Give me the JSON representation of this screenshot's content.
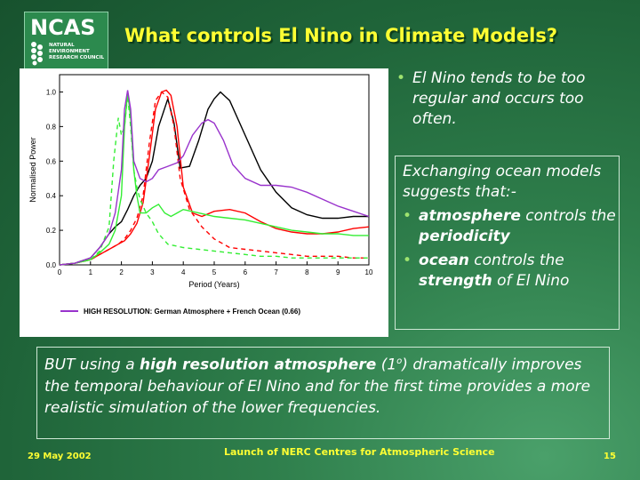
{
  "logo": {
    "name": "NCAS",
    "sub": [
      "NATURAL",
      "ENVIRONMENT",
      "RESEARCH COUNCIL"
    ]
  },
  "title": "What controls El Nino in Climate Models?",
  "bullets": [
    "El Nino tends to be too regular and occurs too often."
  ],
  "box": {
    "intro": "Exchanging ocean models suggests that:-",
    "items": [
      {
        "b1": "atmosphere",
        "t1": " controls the ",
        "b2": "periodicity"
      },
      {
        "b1": "ocean",
        "t1": " controls the ",
        "b2": "strength",
        "t2": " of El Nino"
      }
    ]
  },
  "conclusion": {
    "t1": "BUT using a ",
    "b1": "high resolution atmosphere",
    "t2": " (1",
    "sup": "o",
    "t3": ") dramatically improves the temporal behaviour of El Nino and for the first time provides a more realistic simulation of the lower frequencies."
  },
  "footer": {
    "date": "29 May 2002",
    "center": "Launch of NERC Centres for Atmospheric Science",
    "page": "15"
  },
  "chart_data": {
    "type": "line",
    "xlabel": "Period (Years)",
    "ylabel": "Normalised Power",
    "xlim": [
      0,
      10
    ],
    "ylim": [
      0,
      1.1
    ],
    "xticks": [
      0,
      1,
      2,
      3,
      4,
      5,
      6,
      7,
      8,
      9,
      10
    ],
    "yticks": [
      0.0,
      0.2,
      0.4,
      0.6,
      0.8,
      1.0
    ],
    "legend_text": "HIGH RESOLUTION: German Atmosphere + French Ocean (0.66)",
    "legend_color": "#9933cc",
    "series": [
      {
        "color": "#000000",
        "dash": "",
        "x": [
          0,
          0.5,
          1,
          1.3,
          1.6,
          1.8,
          2.0,
          2.2,
          2.4,
          2.6,
          2.8,
          3.0,
          3.2,
          3.5,
          3.7,
          3.9,
          4.2,
          4.5,
          4.8,
          5.0,
          5.2,
          5.5,
          6.0,
          6.5,
          7.0,
          7.5,
          8.0,
          8.5,
          9.0,
          9.5,
          10
        ],
        "y": [
          0,
          0.01,
          0.04,
          0.1,
          0.18,
          0.22,
          0.25,
          0.32,
          0.4,
          0.46,
          0.5,
          0.6,
          0.8,
          0.96,
          0.82,
          0.56,
          0.57,
          0.72,
          0.9,
          0.96,
          1.0,
          0.95,
          0.75,
          0.55,
          0.42,
          0.33,
          0.29,
          0.27,
          0.27,
          0.28,
          0.28
        ]
      },
      {
        "color": "#ff0000",
        "dash": "",
        "x": [
          0,
          0.5,
          1,
          1.3,
          1.6,
          1.9,
          2.1,
          2.3,
          2.5,
          2.7,
          2.9,
          3.1,
          3.3,
          3.45,
          3.6,
          3.8,
          4.0,
          4.3,
          4.6,
          5.0,
          5.5,
          6.0,
          6.5,
          7.0,
          7.5,
          8.0,
          8.5,
          9.0,
          9.5,
          10
        ],
        "y": [
          0,
          0.01,
          0.03,
          0.06,
          0.09,
          0.12,
          0.14,
          0.18,
          0.24,
          0.36,
          0.62,
          0.9,
          1.0,
          1.01,
          0.98,
          0.8,
          0.45,
          0.3,
          0.28,
          0.31,
          0.32,
          0.3,
          0.25,
          0.21,
          0.19,
          0.18,
          0.18,
          0.19,
          0.21,
          0.22
        ]
      },
      {
        "color": "#ff0000",
        "dash": "5,4",
        "x": [
          0,
          0.5,
          1,
          1.3,
          1.6,
          1.9,
          2.1,
          2.3,
          2.5,
          2.7,
          2.9,
          3.1,
          3.3,
          3.5,
          3.7,
          3.9,
          4.2,
          4.6,
          5.0,
          5.5,
          6.0,
          6.5,
          7.0,
          7.5,
          8.0,
          8.5,
          9.0,
          9.5,
          10
        ],
        "y": [
          0,
          0.01,
          0.03,
          0.06,
          0.09,
          0.12,
          0.15,
          0.2,
          0.27,
          0.4,
          0.7,
          0.95,
          1.0,
          0.97,
          0.8,
          0.5,
          0.32,
          0.22,
          0.15,
          0.1,
          0.09,
          0.08,
          0.07,
          0.06,
          0.05,
          0.05,
          0.05,
          0.04,
          0.04
        ]
      },
      {
        "color": "#33ee33",
        "dash": "",
        "x": [
          0,
          0.5,
          1,
          1.3,
          1.6,
          1.8,
          2.0,
          2.1,
          2.2,
          2.3,
          2.4,
          2.5,
          2.6,
          2.8,
          3.0,
          3.2,
          3.4,
          3.6,
          3.8,
          4.0,
          4.5,
          5.0,
          5.5,
          6.0,
          6.5,
          7.0,
          7.5,
          8.0,
          8.5,
          9.0,
          9.5,
          10
        ],
        "y": [
          0,
          0.01,
          0.03,
          0.07,
          0.12,
          0.2,
          0.4,
          0.8,
          1.0,
          0.85,
          0.55,
          0.4,
          0.3,
          0.3,
          0.33,
          0.35,
          0.3,
          0.28,
          0.3,
          0.32,
          0.3,
          0.28,
          0.27,
          0.26,
          0.24,
          0.22,
          0.2,
          0.19,
          0.18,
          0.18,
          0.17,
          0.17
        ]
      },
      {
        "color": "#33ee33",
        "dash": "5,4",
        "x": [
          0,
          0.5,
          1,
          1.3,
          1.6,
          1.75,
          1.9,
          2.0,
          2.1,
          2.2,
          2.3,
          2.4,
          2.5,
          2.6,
          2.8,
          3.0,
          3.2,
          3.5,
          4.0,
          4.5,
          5.0,
          5.5,
          6.0,
          6.5,
          7.0,
          7.5,
          8.0,
          8.5,
          9.0,
          9.5,
          10
        ],
        "y": [
          0,
          0.01,
          0.03,
          0.08,
          0.22,
          0.6,
          0.85,
          0.75,
          0.8,
          0.98,
          0.8,
          0.55,
          0.45,
          0.38,
          0.3,
          0.25,
          0.18,
          0.12,
          0.1,
          0.09,
          0.08,
          0.07,
          0.06,
          0.05,
          0.05,
          0.04,
          0.04,
          0.04,
          0.04,
          0.04,
          0.04
        ]
      },
      {
        "color": "#9933cc",
        "dash": "",
        "x": [
          0,
          0.5,
          1,
          1.3,
          1.6,
          1.8,
          2.0,
          2.1,
          2.2,
          2.3,
          2.4,
          2.6,
          2.8,
          3.0,
          3.2,
          3.5,
          3.8,
          4.0,
          4.3,
          4.6,
          4.8,
          5.0,
          5.3,
          5.6,
          6.0,
          6.5,
          7.0,
          7.5,
          8.0,
          8.5,
          9.0,
          9.5,
          10
        ],
        "y": [
          0,
          0.01,
          0.04,
          0.1,
          0.18,
          0.3,
          0.55,
          0.9,
          1.01,
          0.9,
          0.6,
          0.5,
          0.48,
          0.5,
          0.55,
          0.57,
          0.59,
          0.63,
          0.75,
          0.82,
          0.84,
          0.82,
          0.72,
          0.58,
          0.5,
          0.46,
          0.46,
          0.45,
          0.42,
          0.38,
          0.34,
          0.31,
          0.28
        ]
      }
    ]
  }
}
